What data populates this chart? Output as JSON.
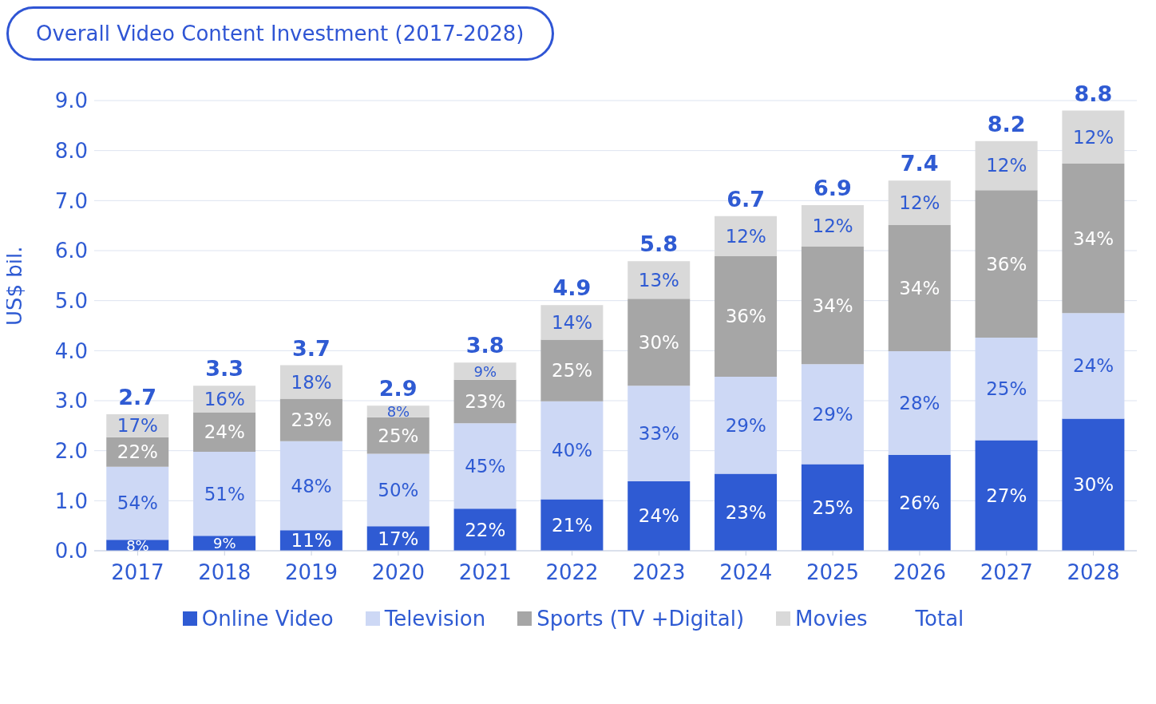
{
  "chart_data": {
    "type": "bar",
    "title": "Overall Video Content Investment (2017-2028)",
    "ylabel": "US$ bil.",
    "stacked": true,
    "categories": [
      "2017",
      "2018",
      "2019",
      "2020",
      "2021",
      "2022",
      "2023",
      "2024",
      "2025",
      "2026",
      "2027",
      "2028"
    ],
    "series": [
      {
        "name": "Online Video",
        "color": "#2f5bd3",
        "values": [
          0.22,
          0.3,
          0.41,
          0.49,
          0.84,
          1.03,
          1.39,
          1.54,
          1.73,
          1.92,
          2.21,
          2.64
        ]
      },
      {
        "name": "Television",
        "color": "#cdd8f5",
        "values": [
          1.46,
          1.68,
          1.78,
          1.45,
          1.71,
          1.96,
          1.91,
          1.94,
          2.0,
          2.07,
          2.05,
          2.11
        ]
      },
      {
        "name": "Sports (TV +Digital)",
        "color": "#a6a6a6",
        "values": [
          0.59,
          0.79,
          0.85,
          0.73,
          0.87,
          1.23,
          1.74,
          2.41,
          2.35,
          2.52,
          2.95,
          2.99
        ]
      },
      {
        "name": "Movies",
        "color": "#d9d9d9",
        "values": [
          0.46,
          0.53,
          0.67,
          0.23,
          0.34,
          0.69,
          0.75,
          0.8,
          0.83,
          0.89,
          0.98,
          1.06
        ]
      }
    ],
    "totals": [
      "2.7",
      "3.3",
      "3.7",
      "2.9",
      "3.8",
      "4.9",
      "5.8",
      "6.7",
      "6.9",
      "7.4",
      "8.2",
      "8.8"
    ],
    "annotations": [
      "Total",
      "8%",
      "54%",
      "22%",
      "17%",
      "9%",
      "51%",
      "24%",
      "16%",
      "11%",
      "48%",
      "23%",
      "18%",
      "17%",
      "50%",
      "25%",
      "8%",
      "22%",
      "45%",
      "23%",
      "9%",
      "21%",
      "40%",
      "25%",
      "14%",
      "24%",
      "33%",
      "30%",
      "13%",
      "23%",
      "29%",
      "36%",
      "12%",
      "25%",
      "29%",
      "34%",
      "12%",
      "26%",
      "28%",
      "34%",
      "12%",
      "27%",
      "25%",
      "36%",
      "12%",
      "30%",
      "24%",
      "34%",
      "12%"
    ],
    "ylim": [
      0,
      9
    ],
    "yticks": [
      {
        "value": 0,
        "label": "0.0"
      },
      {
        "value": 1,
        "label": "1.0"
      },
      {
        "value": 2,
        "label": "2.0"
      },
      {
        "value": 3,
        "label": "3.0"
      },
      {
        "value": 4,
        "label": "4.0"
      },
      {
        "value": 5,
        "label": "5.0"
      },
      {
        "value": 6,
        "label": "6.0"
      },
      {
        "value": 7,
        "label": "7.0"
      },
      {
        "value": 8,
        "label": "8.0"
      },
      {
        "value": 9,
        "label": "9.0"
      }
    ],
    "grid": "y",
    "legend": "bottom"
  }
}
